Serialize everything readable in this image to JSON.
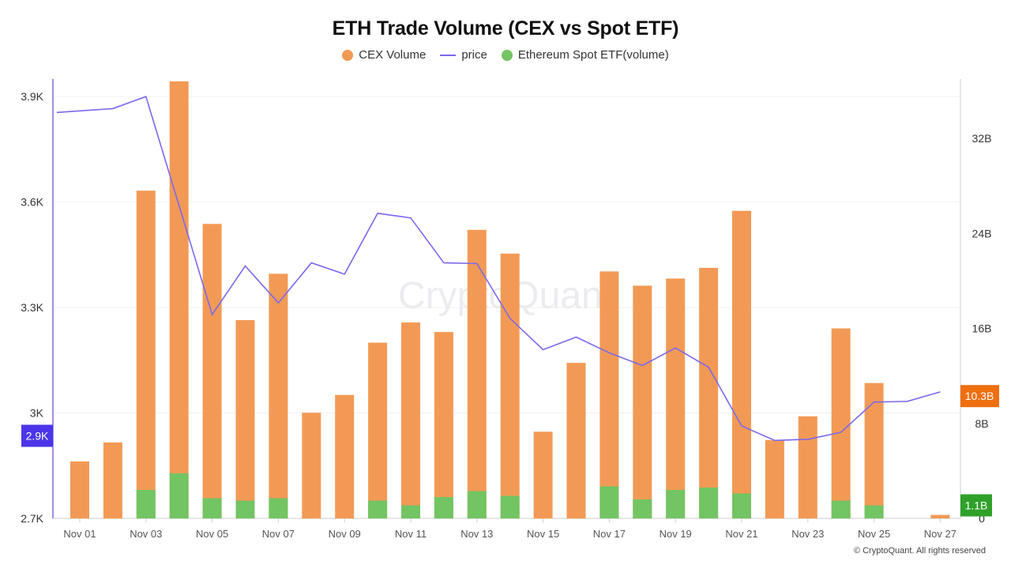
{
  "chart_data": {
    "type": "bar",
    "title": "ETH Trade Volume (CEX vs Spot ETF)",
    "legend": [
      {
        "name": "CEX Volume",
        "color": "#f29a55",
        "shape": "circle"
      },
      {
        "name": "price",
        "color": "#7b68ee",
        "shape": "line"
      },
      {
        "name": "Ethereum Spot ETF(volume)",
        "color": "#73c463",
        "shape": "circle"
      }
    ],
    "categories": [
      "Nov 01",
      "Nov 02",
      "Nov 03",
      "Nov 04",
      "Nov 05",
      "Nov 06",
      "Nov 07",
      "Nov 08",
      "Nov 09",
      "Nov 10",
      "Nov 11",
      "Nov 12",
      "Nov 13",
      "Nov 14",
      "Nov 15",
      "Nov 16",
      "Nov 17",
      "Nov 18",
      "Nov 19",
      "Nov 20",
      "Nov 21",
      "Nov 22",
      "Nov 23",
      "Nov 24",
      "Nov 25",
      "Nov 26",
      "Nov 27"
    ],
    "xtick_labels": [
      "Nov 01",
      "Nov 03",
      "Nov 05",
      "Nov 07",
      "Nov 09",
      "Nov 11",
      "Nov 13",
      "Nov 15",
      "Nov 17",
      "Nov 19",
      "Nov 21",
      "Nov 23",
      "Nov 25",
      "Nov 27"
    ],
    "series": [
      {
        "name": "CEX Volume",
        "axis": "right",
        "color": "#f29a55",
        "values": [
          4.8,
          6.4,
          27.6,
          36.8,
          24.8,
          16.7,
          20.6,
          8.9,
          10.4,
          14.8,
          16.5,
          15.7,
          24.3,
          22.3,
          7.3,
          13.1,
          20.8,
          19.6,
          20.2,
          21.1,
          25.9,
          6.6,
          8.6,
          16.0,
          11.4,
          null,
          0.3
        ]
      },
      {
        "name": "Ethereum Spot ETF(volume)",
        "axis": "right",
        "color": "#73c463",
        "values": [
          0,
          0,
          2.4,
          3.8,
          1.7,
          1.5,
          1.7,
          0,
          0,
          1.5,
          1.1,
          1.8,
          2.3,
          1.9,
          0,
          0,
          2.7,
          1.6,
          2.4,
          2.6,
          2.1,
          0,
          0,
          1.5,
          1.1,
          null,
          0
        ]
      },
      {
        "name": "price",
        "axis": "left",
        "color": "#7b68ee",
        "values": [
          3855,
          3866,
          3900,
          3590,
          3280,
          3418,
          3313,
          3427,
          3395,
          3568,
          3555,
          3427,
          3425,
          3269,
          3180,
          3216,
          3171,
          3135,
          3185,
          3130,
          2963,
          2922,
          2925,
          2945,
          3031,
          3033,
          3060
        ]
      }
    ],
    "left_axis": {
      "ylim": [
        2700,
        3950
      ],
      "ticks": [
        2700,
        3000,
        3300,
        3600,
        3900
      ],
      "tick_labels": [
        "2.7K",
        "3K",
        "3.3K",
        "3.6K",
        "3.9K"
      ]
    },
    "right_axis": {
      "ylim": [
        0,
        37
      ],
      "ticks": [
        0,
        8,
        16,
        24,
        32
      ],
      "tick_labels": [
        "0",
        "8B",
        "16B",
        "24B",
        "32B"
      ]
    },
    "badges": {
      "price": {
        "label": "2.9K",
        "value": 2935,
        "color": "#4a36e8"
      },
      "cex": {
        "label": "10.3B",
        "value": 10.3,
        "color": "#ee6f0f"
      },
      "etf": {
        "label": "1.1B",
        "value": 1.1,
        "color": "#2fa12a"
      }
    },
    "watermark": "CryptoQuant",
    "footer": "© CryptoQuant. All rights reserved"
  }
}
